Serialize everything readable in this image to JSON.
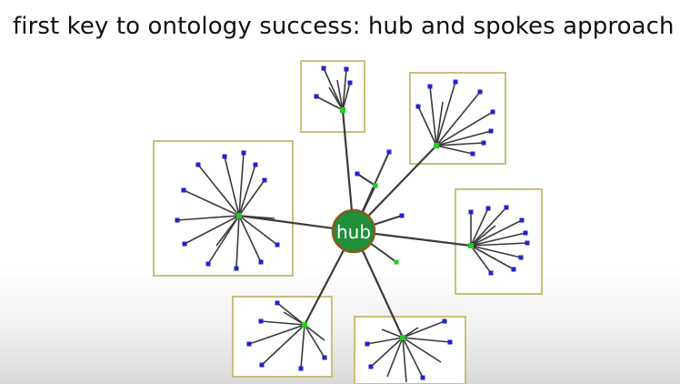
{
  "slide": {
    "title": "first key to ontology success: hub and spokes approach"
  },
  "diagram": {
    "hub_label": "hub",
    "colors": {
      "hub_fill": "#1f8f3a",
      "hub_border": "#8a5a1a",
      "hub_text": "#ffffff",
      "spoke_line": "#3a3a3a",
      "cluster_center": "#22cc22",
      "leaf_node": "#2222cc",
      "cluster_box": "#c8c07a"
    },
    "clusters": [
      {
        "id": "top",
        "leaf_count": 6
      },
      {
        "id": "top-right",
        "leaf_count": 9
      },
      {
        "id": "left",
        "leaf_count": 14
      },
      {
        "id": "right",
        "leaf_count": 10
      },
      {
        "id": "bottom-left",
        "leaf_count": 8
      },
      {
        "id": "bottom-right",
        "leaf_count": 10
      }
    ],
    "loose_spokes": 5
  }
}
